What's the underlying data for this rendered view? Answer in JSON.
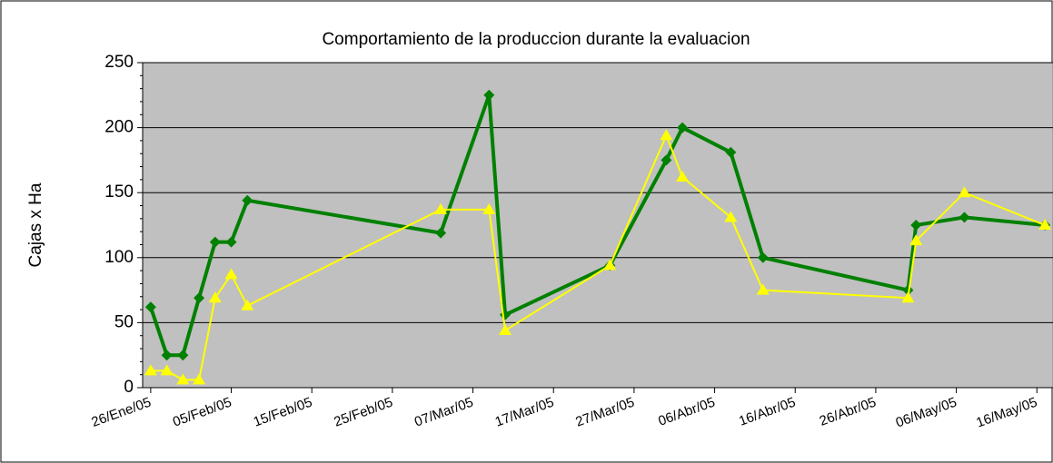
{
  "chart_data": {
    "type": "line",
    "title": "Comportamiento de la produccion durante la evaluacion",
    "y_label": "Cajas x Ha",
    "x": [
      "2005-01-26",
      "2005-01-28",
      "2005-01-30",
      "2005-02-01",
      "2005-02-03",
      "2005-02-05",
      "2005-02-07",
      "2005-03-03",
      "2005-03-09",
      "2005-03-11",
      "2005-03-24",
      "2005-03-31",
      "2005-04-02",
      "2005-04-08",
      "2005-04-12",
      "2005-04-30",
      "2005-05-01",
      "2005-05-07",
      "2005-05-17"
    ],
    "series": [
      {
        "color": "#008000",
        "marker": "diamond",
        "values": [
          62,
          25,
          25,
          69,
          112,
          112,
          144,
          119,
          225,
          56,
          94,
          175,
          200,
          181,
          100,
          75,
          125,
          131,
          125
        ]
      },
      {
        "color": "#ffff00",
        "marker": "triangle",
        "values": [
          13,
          13,
          6,
          6,
          69,
          87,
          63,
          137,
          137,
          44,
          94,
          194,
          162,
          131,
          75,
          69,
          113,
          150,
          125
        ]
      }
    ],
    "xlim": [
      "2005-01-25",
      "2005-05-18"
    ],
    "xticks": [
      {
        "value": "2005-01-26",
        "label": "26/Ene/05"
      },
      {
        "value": "2005-02-05",
        "label": "05/Feb/05"
      },
      {
        "value": "2005-02-15",
        "label": "15/Feb/05"
      },
      {
        "value": "2005-02-25",
        "label": "25/Feb/05"
      },
      {
        "value": "2005-03-07",
        "label": "07/Mar/05"
      },
      {
        "value": "2005-03-17",
        "label": "17/Mar/05"
      },
      {
        "value": "2005-03-27",
        "label": "27/Mar/05"
      },
      {
        "value": "2005-04-06",
        "label": "06/Abr/05"
      },
      {
        "value": "2005-04-16",
        "label": "16/Abr/05"
      },
      {
        "value": "2005-04-26",
        "label": "26/Abr/05"
      },
      {
        "value": "2005-05-06",
        "label": "06/May/05"
      },
      {
        "value": "2005-05-16",
        "label": "16/May/05"
      }
    ],
    "ylim": [
      0,
      250
    ],
    "yticks": [
      0,
      50,
      100,
      150,
      200,
      250
    ],
    "grid": true,
    "plot_background": "#c0c0c0"
  }
}
